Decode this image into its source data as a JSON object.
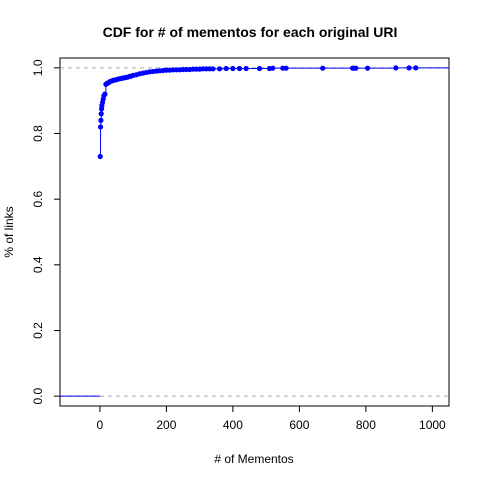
{
  "chart_data": {
    "type": "scatter",
    "title": "CDF for # of mementos for each original URI",
    "xlabel": "# of Mementos",
    "ylabel": "% of links",
    "xlim": [
      -120,
      1050
    ],
    "ylim": [
      -0.03,
      1.03
    ],
    "xticks": [
      0,
      200,
      400,
      600,
      800,
      1000
    ],
    "yticks": [
      0.0,
      0.2,
      0.4,
      0.6,
      0.8,
      1.0
    ],
    "xtick_labels": [
      "0",
      "200",
      "400",
      "600",
      "800",
      "1000"
    ],
    "ytick_labels": [
      "0.0",
      "0.2",
      "0.4",
      "0.6",
      "0.8",
      "1.0"
    ],
    "reference_lines_y": [
      0.0,
      1.0
    ],
    "series": [
      {
        "color": "#0000ff",
        "x": [
          1,
          2,
          3,
          4,
          5,
          6,
          8,
          10,
          12,
          15,
          18,
          22,
          26,
          30,
          35,
          40,
          45,
          50,
          55,
          60,
          65,
          70,
          75,
          80,
          85,
          90,
          95,
          100,
          110,
          120,
          130,
          140,
          150,
          160,
          170,
          180,
          190,
          200,
          210,
          220,
          230,
          240,
          250,
          260,
          270,
          280,
          290,
          300,
          310,
          320,
          330,
          340,
          360,
          380,
          400,
          420,
          440,
          480,
          510,
          520,
          550,
          560,
          670,
          760,
          765,
          770,
          805,
          890,
          930,
          950
        ],
        "y": [
          0.73,
          0.82,
          0.84,
          0.86,
          0.875,
          0.885,
          0.895,
          0.905,
          0.915,
          0.92,
          0.95,
          0.953,
          0.955,
          0.958,
          0.96,
          0.962,
          0.963,
          0.964,
          0.966,
          0.967,
          0.968,
          0.969,
          0.97,
          0.971,
          0.972,
          0.974,
          0.975,
          0.977,
          0.979,
          0.982,
          0.984,
          0.986,
          0.988,
          0.989,
          0.99,
          0.991,
          0.992,
          0.993,
          0.993,
          0.994,
          0.994,
          0.994,
          0.995,
          0.995,
          0.995,
          0.996,
          0.996,
          0.996,
          0.997,
          0.997,
          0.997,
          0.997,
          0.997,
          0.998,
          0.998,
          0.998,
          0.998,
          0.998,
          0.998,
          0.999,
          0.999,
          0.999,
          0.999,
          0.999,
          0.999,
          0.999,
          0.999,
          1.0,
          1.0,
          1.0
        ]
      }
    ],
    "grid": false,
    "legend": "none"
  }
}
